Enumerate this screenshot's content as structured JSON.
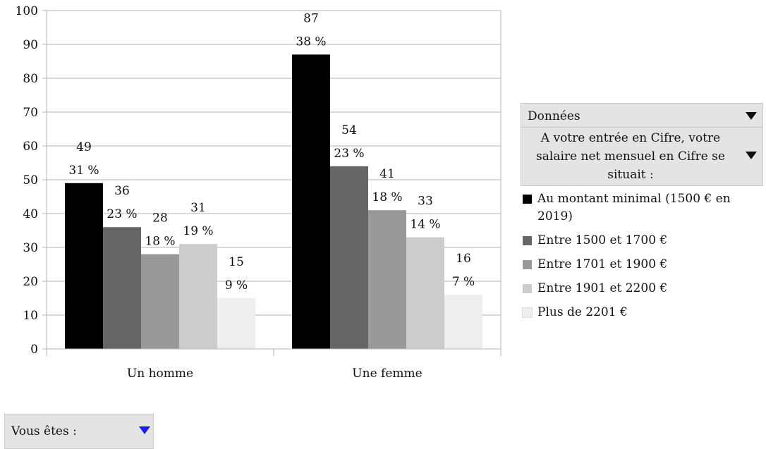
{
  "chart_data": {
    "type": "bar",
    "categories": [
      "Un homme",
      "Une femme"
    ],
    "series": [
      {
        "name": "Au montant minimal (1500 € en 2019)",
        "color": "#000000",
        "values": [
          49,
          87
        ],
        "percent_labels": [
          "31 %",
          "38 %"
        ]
      },
      {
        "name": "Entre 1500 et 1700 €",
        "color": "#666666",
        "values": [
          36,
          54
        ],
        "percent_labels": [
          "23 %",
          "23 %"
        ]
      },
      {
        "name": "Entre 1701 et 1900 €",
        "color": "#999999",
        "values": [
          28,
          41
        ],
        "percent_labels": [
          "18 %",
          "18 %"
        ]
      },
      {
        "name": "Entre 1901 et 2200 €",
        "color": "#cccccc",
        "values": [
          31,
          33
        ],
        "percent_labels": [
          "19 %",
          "14 %"
        ]
      },
      {
        "name": "Plus de 2201 €",
        "color": "#eeeeee",
        "values": [
          15,
          16
        ],
        "percent_labels": [
          "9 %",
          "7 %"
        ]
      }
    ],
    "ylim": [
      0,
      100
    ],
    "yticks": [
      0,
      10,
      20,
      30,
      40,
      50,
      60,
      70,
      80,
      90,
      100
    ],
    "grid": true,
    "legend_position": "right"
  },
  "fields": {
    "data_label": "Données",
    "question_label": "A votre entrée en Cifre, votre salaire net mensuel en Cifre se situait :",
    "category_label": "Vous êtes :"
  }
}
